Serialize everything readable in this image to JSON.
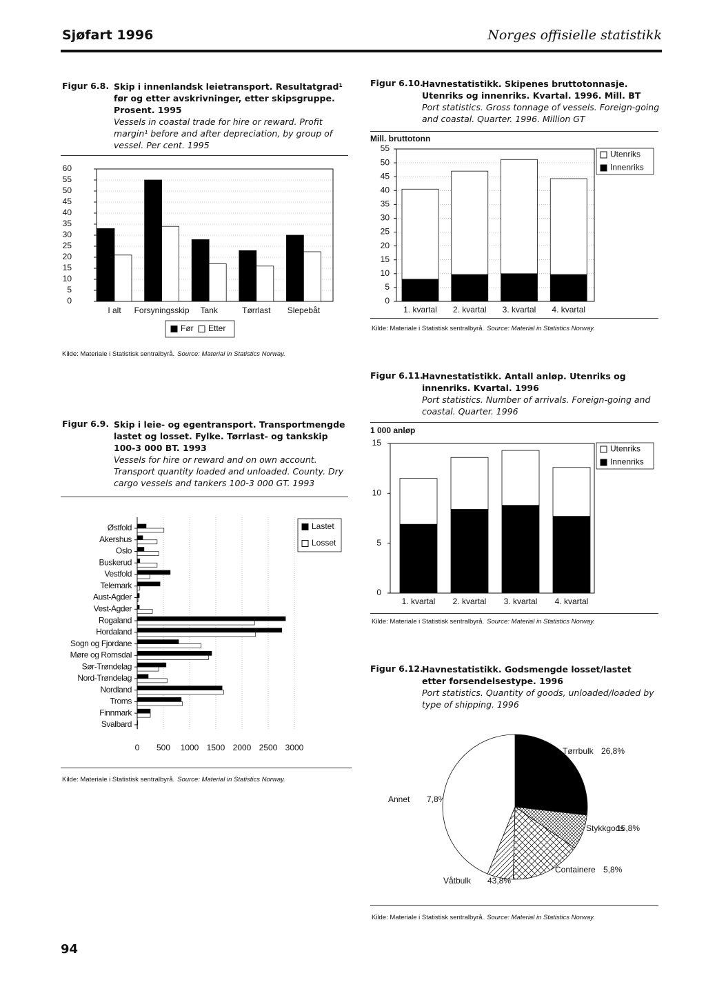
{
  "header": {
    "left": "Sjøfart 1996",
    "right": "Norges offisielle statistikk"
  },
  "page_number": "94",
  "chart_data": [
    {
      "type": "bar",
      "figure": "Figur 6.8.",
      "title": "Skip i innenlandsk leietransport. Resultatgrad¹ før og etter avskrivninger, etter skipsgruppe. Prosent. 1995",
      "subtitle": "Vessels in coastal trade for hire or reward. Profit margin¹ before and after depreciation, by group of vessel. Per cent. 1995",
      "categories": [
        "I alt",
        "Forsyningsskip",
        "Tank",
        "Tørrlast",
        "Slepebåt"
      ],
      "series": [
        {
          "name": "Før",
          "color": "#000000",
          "values": [
            33,
            55,
            28,
            23,
            30
          ]
        },
        {
          "name": "Etter",
          "color": "#ffffff",
          "values": [
            21,
            34,
            17,
            16,
            22.5
          ]
        }
      ],
      "ylim": [
        0,
        60
      ],
      "yticks": [
        0,
        5,
        10,
        15,
        20,
        25,
        30,
        35,
        40,
        45,
        50,
        55,
        60
      ],
      "grid": true,
      "legend": "bottom",
      "source": "Kilde: Materiale i Statistisk sentralbyrå.",
      "source_en": "Source: Material in Statistics Norway."
    },
    {
      "type": "stacked_bar",
      "figure": "Figur 6.10.",
      "title": "Havnestatistikk. Skipenes bruttotonnasje. Utenriks og innenriks. Kvartal. 1996. Mill. BT",
      "subtitle": "Port statistics. Gross tonnage of vessels. Foreign-going and coastal. Quarter. 1996. Million GT",
      "y_label": "Mill. bruttotonn",
      "categories": [
        "1. kvartal",
        "2. kvartal",
        "3. kvartal",
        "4. kvartal"
      ],
      "series": [
        {
          "name": "Innenriks",
          "color": "#000000",
          "values": [
            8,
            9.7,
            10,
            9.7
          ]
        },
        {
          "name": "Utenriks",
          "color": "#ffffff",
          "values": [
            32.5,
            37.3,
            41.2,
            34.6
          ]
        }
      ],
      "ylim": [
        0,
        55
      ],
      "yticks": [
        0,
        5,
        10,
        15,
        20,
        25,
        30,
        35,
        40,
        45,
        50,
        55
      ],
      "grid": true,
      "legend": "upper right",
      "source": "Kilde: Materiale i Statistisk sentralbyrå.",
      "source_en": "Source: Material in Statistics Norway."
    },
    {
      "type": "horizontal_bar",
      "figure": "Figur 6.9.",
      "title": "Skip i leie- og egentransport. Transportmengde lastet og losset. Fylke. Tørrlast- og tankskip 100-3 000 BT. 1993",
      "subtitle": "Vessels for hire or reward and on own account. Transport quantity loaded and unloaded. County. Dry cargo vessels and tankers 100-3 000 GT. 1993",
      "categories": [
        "Østfold",
        "Akershus",
        "Oslo",
        "Buskerud",
        "Vestfold",
        "Telemark",
        "Aust-Agder",
        "Vest-Agder",
        "Rogaland",
        "Hordaland",
        "Sogn og Fjordane",
        "Møre og Romsdal",
        "Sør-Trøndelag",
        "Nord-Trøndelag",
        "Nordland",
        "Troms",
        "Finnmark",
        "Svalbard"
      ],
      "series": [
        {
          "name": "Lastet",
          "color": "#000000",
          "values": [
            170,
            105,
            130,
            50,
            630,
            435,
            40,
            40,
            2830,
            2760,
            790,
            1420,
            550,
            210,
            1620,
            840,
            250,
            10
          ]
        },
        {
          "name": "Losset",
          "color": "#ffffff",
          "values": [
            510,
            380,
            410,
            380,
            240,
            50,
            15,
            290,
            2240,
            2260,
            1220,
            1360,
            410,
            570,
            1650,
            860,
            250,
            5
          ]
        }
      ],
      "xlim": [
        0,
        3000
      ],
      "xticks": [
        0,
        500,
        1000,
        1500,
        2000,
        2500,
        3000
      ],
      "grid": true,
      "legend": "right",
      "source": "Kilde: Materiale i Statistisk sentralbyrå.",
      "source_en": "Source: Material in Statistics Norway."
    },
    {
      "type": "stacked_bar",
      "figure": "Figur 6.11.",
      "title": "Havnestatistikk. Antall anløp. Utenriks og innenriks. Kvartal. 1996",
      "subtitle": "Port statistics. Number of arrivals. Foreign-going and coastal. Quarter. 1996",
      "y_label": "1 000 anløp",
      "categories": [
        "1. kvartal",
        "2. kvartal",
        "3. kvartal",
        "4. kvartal"
      ],
      "series": [
        {
          "name": "Innenriks",
          "color": "#000000",
          "values": [
            6.9,
            8.4,
            8.8,
            7.7
          ]
        },
        {
          "name": "Utenriks",
          "color": "#ffffff",
          "values": [
            4.6,
            5.2,
            5.5,
            4.9
          ]
        }
      ],
      "ylim": [
        0,
        15
      ],
      "yticks": [
        0,
        5,
        10,
        15
      ],
      "grid": false,
      "legend": "upper right",
      "source": "Kilde: Materiale i Statistisk sentralbyrå.",
      "source_en": "Source: Material in Statistics Norway."
    },
    {
      "type": "pie",
      "figure": "Figur 6.12.",
      "title": "Havnestatistikk. Godsmengde losset/lastet etter forsendelsestype. 1996",
      "subtitle": "Port statistics. Quantity of goods, unloaded/loaded by type of shipping. 1996",
      "categories": [
        "Tørrbulk",
        "Annet",
        "Stykkgods",
        "Containere",
        "Våtbulk"
      ],
      "values": [
        26.8,
        7.8,
        15.8,
        5.8,
        43.8
      ],
      "value_labels": [
        "26,8%",
        "7,8%",
        "15,8%",
        "5,8%",
        "43,8%"
      ],
      "fills": [
        "solid",
        "fine-crosshatch",
        "crosshatch",
        "hatch",
        "empty"
      ],
      "source": "Kilde: Materiale i Statistisk sentralbyrå.",
      "source_en": "Source: Material in Statistics Norway."
    }
  ]
}
